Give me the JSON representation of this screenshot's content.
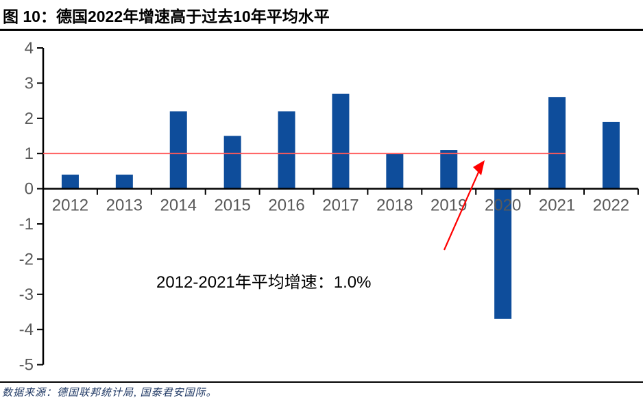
{
  "header": {
    "title": "图 10：德国2022年增速高于过去10年平均水平"
  },
  "footer": {
    "source": "数据来源：德国联邦统计局, 国泰君安国际。"
  },
  "chart_data": {
    "type": "bar",
    "title": "图 10：德国2022年增速高于过去10年平均水平",
    "categories": [
      "2012",
      "2013",
      "2014",
      "2015",
      "2016",
      "2017",
      "2018",
      "2019",
      "2020",
      "2021",
      "2022"
    ],
    "values": [
      0.4,
      0.4,
      2.2,
      1.5,
      2.2,
      2.7,
      1.0,
      1.1,
      -3.7,
      2.6,
      1.9
    ],
    "xlabel": "",
    "ylabel": "",
    "ylim": [
      -5,
      4
    ],
    "ytick_step": 1,
    "yticks": [
      4,
      3,
      2,
      1,
      0,
      -1,
      -2,
      -3,
      -4,
      -5
    ],
    "grid": false,
    "legend": "none",
    "bar_color": "#0E4D9B",
    "axis_color": "#000000",
    "axis_label_color": "#595959",
    "average_line": {
      "value": 1.0,
      "color": "#FF5A5A",
      "span_categories": [
        "2012",
        "2021"
      ]
    },
    "annotation": {
      "text": "2012-2021年平均增速：1.0%",
      "color": "#000000"
    },
    "arrow": {
      "description": "red arrow pointing from annotation area up to the average line",
      "color": "#FF0000"
    }
  }
}
